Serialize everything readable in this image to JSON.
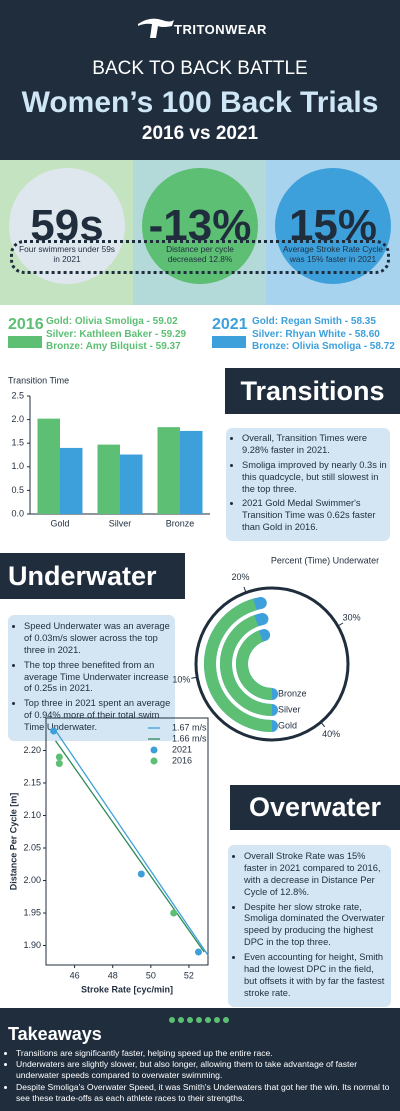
{
  "header": {
    "brand": "TRITONWEAR",
    "kicker": "BACK TO BACK BATTLE",
    "title": "Women’s 100 Back Trials",
    "subtitle": "2016 vs 2021"
  },
  "stats": [
    {
      "value": "59s",
      "caption": "Four swimmers under 59s in 2021"
    },
    {
      "value": "-13%",
      "caption": "Distance per cycle decreased 12.8%"
    },
    {
      "value": "15%",
      "caption": "Average Stroke Rate Cycle was 15% faster in 2021"
    }
  ],
  "results": [
    {
      "year": "2016",
      "lines": [
        "Gold: Olivia Smoliga - 59.02",
        "Silver: Kathleen Baker - 59.29",
        "Bronze: Amy Bilquist - 59.37"
      ]
    },
    {
      "year": "2021",
      "lines": [
        "Gold: Regan Smith - 58.35",
        "Silver: Rhyan White - 58.60",
        "Bronze: Olivia Smoliga - 58.72"
      ]
    }
  ],
  "sections": [
    {
      "heading": "Transitions",
      "bullets": [
        "Overall, Transition Times were 9.28% faster in 2021.",
        "Smoliga improved by nearly 0.3s in this quadcycle, but still slowest in the top three.",
        "2021 Gold Medal Swimmer's Transition Time was 0.62s faster than Gold in 2016."
      ]
    },
    {
      "heading": "Underwater",
      "bullets": [
        "Speed Underwater was an average of 0.03m/s slower across the top three in 2021.",
        "The top three benefited from an average Time Underwater increase of 0.25s in 2021.",
        "Top three in 2021 spent an average of 0.94% more of their total swim Time Underwater."
      ]
    },
    {
      "heading": "Overwater",
      "bullets": [
        "Overall Stroke Rate was 15% faster in 2021 compared to 2016, with a decrease in Distance Per Cycle of 12.8%.",
        "Despite her slow stroke rate, Smoliga dominated the Overwater speed by producing the highest DPC in the top three.",
        "Even accounting for height, Smith had the lowest DPC in the field, but offsets it with by far the fastest stroke rate."
      ]
    }
  ],
  "chart_data": [
    {
      "type": "bar",
      "title": "Transition Time",
      "categories": [
        "Gold",
        "Silver",
        "Bronze"
      ],
      "series": [
        {
          "color": "#5cbf73",
          "values": [
            2.02,
            1.47,
            1.84
          ]
        },
        {
          "color": "#3ea0db",
          "values": [
            1.4,
            1.26,
            1.76
          ]
        }
      ],
      "ylim": [
        0,
        2.5
      ],
      "yticks": [
        {
          "value": 0,
          "label": "0.0"
        },
        0.5,
        {
          "value": 1,
          "label": "1.0"
        },
        1.5,
        {
          "value": 2,
          "label": "2.0"
        },
        2.5
      ]
    },
    {
      "type": "radial",
      "title": "Percent (Time) Underwater",
      "categories": [
        "Gold",
        "Silver",
        "Bronze"
      ],
      "series": [
        {
          "color": "#3ea0db",
          "values": [
            21.2,
            21.0,
            20.6
          ]
        },
        {
          "color": "#5cbf73",
          "values": [
            20.5,
            20.0,
            19.8
          ]
        }
      ],
      "xlim": [
        0,
        45
      ],
      "xticks": [
        {
          "value": 10,
          "label": "10%"
        },
        {
          "value": 20,
          "label": "20%"
        },
        {
          "value": 30,
          "label": "30%"
        },
        {
          "value": 40,
          "label": "40%"
        }
      ]
    },
    {
      "type": "scatter",
      "xlabel": "Stroke Rate  [cyc/min]",
      "ylabel": "Distance Per Cycle [m]",
      "series": [
        {
          "name": "1.67  m/s",
          "mode": "line",
          "color": "#3ea0db",
          "x": [
            44.9,
            53
          ],
          "values": [
            2.235,
            1.885
          ]
        },
        {
          "name": "1.66  m/s",
          "mode": "line",
          "color": "#2e8b57",
          "x": [
            45,
            52.8
          ],
          "values": [
            2.215,
            1.89
          ]
        },
        {
          "name": "2021",
          "mode": "markers",
          "color": "#3ea0db",
          "x": [
            44.9,
            49.5,
            52.5
          ],
          "values": [
            2.23,
            2.01,
            1.89
          ]
        },
        {
          "name": "2016",
          "mode": "markers",
          "color": "#5cbf73",
          "x": [
            45.2,
            45.2,
            51.2
          ],
          "values": [
            2.19,
            2.18,
            1.95
          ]
        }
      ],
      "xlim": [
        44.5,
        53
      ],
      "xticks": [
        46,
        48,
        50,
        52
      ],
      "ylim": [
        1.87,
        2.25
      ],
      "yticks": [
        {
          "value": 1.9,
          "label": "1.90"
        },
        1.95,
        {
          "value": 2,
          "label": "2.00"
        },
        2.05,
        {
          "value": 2.1,
          "label": "2.10"
        },
        2.15,
        {
          "value": 2.2,
          "label": "2.20"
        }
      ]
    }
  ],
  "takeaways": {
    "title": "Takeaways",
    "items": [
      "Transitions are significantly faster, helping speed up the entire race.",
      "Underwaters are slightly slower, but also longer, allowing them to take advantage of faster underwater speeds compared to overwater swimming.",
      "Despite Smoliga's Overwater Speed, it was Smith's Underwaters that got her the win. Its normal to see these trade-offs as each athlete races to their strengths."
    ]
  }
}
